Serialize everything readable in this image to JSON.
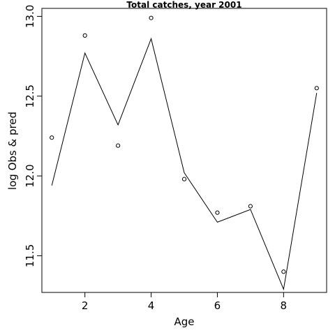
{
  "chart_data": {
    "type": "line",
    "title": "Total catches, year 2001",
    "xlabel": "Age",
    "ylabel": "log Obs & pred",
    "xlim": [
      0.7,
      9.3
    ],
    "ylim": [
      11.27,
      13.05
    ],
    "xticks": [
      2,
      4,
      6,
      8
    ],
    "yticks": [
      11.5,
      12.0,
      12.5,
      13.0
    ],
    "xtick_labels": [
      "2",
      "4",
      "6",
      "8"
    ],
    "ytick_labels": [
      "11.5",
      "12.0",
      "12.5",
      "13.0"
    ],
    "grid": false,
    "series": [
      {
        "style": "points",
        "x": [
          1,
          2,
          3,
          4,
          5,
          6,
          7,
          8,
          9
        ],
        "values": [
          12.24,
          12.88,
          12.19,
          12.99,
          11.98,
          11.77,
          11.81,
          11.4,
          12.55
        ]
      },
      {
        "style": "line",
        "x": [
          1,
          2,
          3,
          4,
          5,
          6,
          7,
          8,
          9
        ],
        "values": [
          11.94,
          12.77,
          12.32,
          12.86,
          12.02,
          11.71,
          11.79,
          11.29,
          12.52
        ]
      }
    ]
  }
}
